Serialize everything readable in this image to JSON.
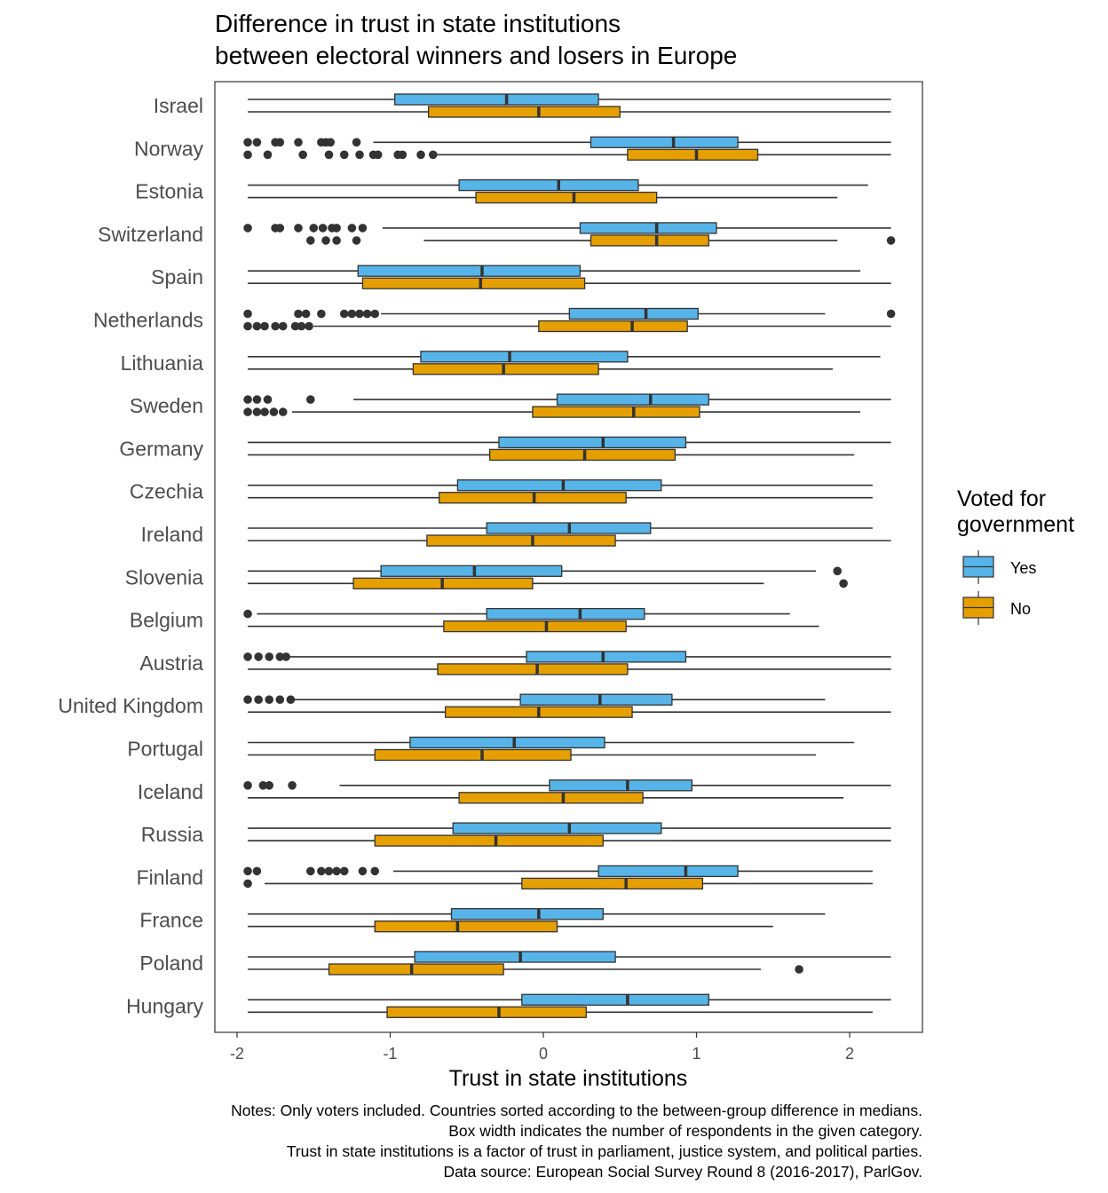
{
  "chart_data": {
    "type": "boxplot",
    "orientation": "horizontal",
    "title": "Difference in trust in state institutions",
    "subtitle": "between electoral winners and losers in Europe",
    "xlabel": "Trust in state institutions",
    "ylabel": "",
    "xlim": [
      -2.15,
      2.48
    ],
    "xticks": [
      -2,
      -1,
      0,
      1,
      2
    ],
    "xtick_labels": [
      "-2",
      "-1",
      "0",
      "1",
      "2"
    ],
    "grid": false,
    "legend": {
      "title_line1": "Voted for",
      "title_line2": "government",
      "placement": "right",
      "entries": [
        {
          "label": "Yes",
          "color": "#56B4E9"
        },
        {
          "label": "No",
          "color": "#E69F00"
        }
      ]
    },
    "colors": {
      "yes": "#56B4E9",
      "no": "#E69F00",
      "outline": "#333333",
      "text": "#4d4d4d"
    },
    "countries": [
      {
        "name": "Israel",
        "yes": {
          "wmin": -1.93,
          "q1": -0.97,
          "median": -0.24,
          "q3": 0.36,
          "wmax": 2.27,
          "outliers": []
        },
        "no": {
          "wmin": -1.93,
          "q1": -0.75,
          "median": -0.03,
          "q3": 0.5,
          "wmax": 2.27,
          "outliers": []
        }
      },
      {
        "name": "Norway",
        "yes": {
          "wmin": -1.11,
          "q1": 0.31,
          "median": 0.85,
          "q3": 1.27,
          "wmax": 2.27,
          "outliers": [
            -1.93,
            -1.87,
            -1.75,
            -1.72,
            -1.6,
            -1.45,
            -1.42,
            -1.39,
            -1.22
          ]
        },
        "no": {
          "wmin": -0.7,
          "q1": 0.55,
          "median": 1.0,
          "q3": 1.4,
          "wmax": 2.27,
          "outliers": [
            -1.93,
            -1.8,
            -1.57,
            -1.4,
            -1.3,
            -1.2,
            -1.11,
            -1.08,
            -0.95,
            -0.92,
            -0.8,
            -0.72
          ]
        }
      },
      {
        "name": "Estonia",
        "yes": {
          "wmin": -1.93,
          "q1": -0.55,
          "median": 0.1,
          "q3": 0.62,
          "wmax": 2.12,
          "outliers": []
        },
        "no": {
          "wmin": -1.93,
          "q1": -0.44,
          "median": 0.2,
          "q3": 0.74,
          "wmax": 1.92,
          "outliers": []
        }
      },
      {
        "name": "Switzerland",
        "yes": {
          "wmin": -1.05,
          "q1": 0.24,
          "median": 0.74,
          "q3": 1.13,
          "wmax": 2.27,
          "outliers": [
            -1.93,
            -1.75,
            -1.72,
            -1.6,
            -1.5,
            -1.44,
            -1.38,
            -1.35,
            -1.25,
            -1.18
          ]
        },
        "no": {
          "wmin": -0.78,
          "q1": 0.31,
          "median": 0.74,
          "q3": 1.08,
          "wmax": 1.92,
          "outliers": [
            -1.52,
            -1.42,
            -1.35,
            -1.22,
            2.27
          ]
        }
      },
      {
        "name": "Spain",
        "yes": {
          "wmin": -1.93,
          "q1": -1.21,
          "median": -0.4,
          "q3": 0.24,
          "wmax": 2.07,
          "outliers": []
        },
        "no": {
          "wmin": -1.93,
          "q1": -1.18,
          "median": -0.41,
          "q3": 0.27,
          "wmax": 2.27,
          "outliers": []
        }
      },
      {
        "name": "Netherlands",
        "yes": {
          "wmin": -1.06,
          "q1": 0.17,
          "median": 0.67,
          "q3": 1.01,
          "wmax": 1.84,
          "outliers": [
            -1.93,
            -1.6,
            -1.55,
            -1.45,
            -1.3,
            -1.25,
            -1.2,
            -1.15,
            -1.1,
            2.27
          ]
        },
        "no": {
          "wmin": -1.5,
          "q1": -0.03,
          "median": 0.58,
          "q3": 0.94,
          "wmax": 2.27,
          "outliers": [
            -1.93,
            -1.87,
            -1.82,
            -1.75,
            -1.7,
            -1.62,
            -1.58,
            -1.53
          ]
        }
      },
      {
        "name": "Lithuania",
        "yes": {
          "wmin": -1.93,
          "q1": -0.8,
          "median": -0.22,
          "q3": 0.55,
          "wmax": 2.2,
          "outliers": []
        },
        "no": {
          "wmin": -1.93,
          "q1": -0.85,
          "median": -0.26,
          "q3": 0.36,
          "wmax": 1.89,
          "outliers": []
        }
      },
      {
        "name": "Sweden",
        "yes": {
          "wmin": -1.24,
          "q1": 0.09,
          "median": 0.7,
          "q3": 1.08,
          "wmax": 2.27,
          "outliers": [
            -1.93,
            -1.87,
            -1.8,
            -1.52
          ]
        },
        "no": {
          "wmin": -1.64,
          "q1": -0.07,
          "median": 0.59,
          "q3": 1.02,
          "wmax": 2.07,
          "outliers": [
            -1.93,
            -1.87,
            -1.82,
            -1.76,
            -1.7
          ]
        }
      },
      {
        "name": "Germany",
        "yes": {
          "wmin": -1.93,
          "q1": -0.29,
          "median": 0.39,
          "q3": 0.93,
          "wmax": 2.27,
          "outliers": []
        },
        "no": {
          "wmin": -1.93,
          "q1": -0.35,
          "median": 0.27,
          "q3": 0.86,
          "wmax": 2.03,
          "outliers": []
        }
      },
      {
        "name": "Czechia",
        "yes": {
          "wmin": -1.93,
          "q1": -0.56,
          "median": 0.13,
          "q3": 0.77,
          "wmax": 2.15,
          "outliers": []
        },
        "no": {
          "wmin": -1.93,
          "q1": -0.68,
          "median": -0.06,
          "q3": 0.54,
          "wmax": 2.15,
          "outliers": []
        }
      },
      {
        "name": "Ireland",
        "yes": {
          "wmin": -1.93,
          "q1": -0.37,
          "median": 0.17,
          "q3": 0.7,
          "wmax": 2.15,
          "outliers": []
        },
        "no": {
          "wmin": -1.93,
          "q1": -0.76,
          "median": -0.07,
          "q3": 0.47,
          "wmax": 2.27,
          "outliers": []
        }
      },
      {
        "name": "Slovenia",
        "yes": {
          "wmin": -1.93,
          "q1": -1.06,
          "median": -0.45,
          "q3": 0.12,
          "wmax": 1.78,
          "outliers": [
            1.92
          ]
        },
        "no": {
          "wmin": -1.93,
          "q1": -1.24,
          "median": -0.66,
          "q3": -0.07,
          "wmax": 1.44,
          "outliers": [
            1.96
          ]
        }
      },
      {
        "name": "Belgium",
        "yes": {
          "wmin": -1.87,
          "q1": -0.37,
          "median": 0.24,
          "q3": 0.66,
          "wmax": 1.61,
          "outliers": [
            -1.93
          ]
        },
        "no": {
          "wmin": -1.93,
          "q1": -0.65,
          "median": 0.02,
          "q3": 0.54,
          "wmax": 1.8,
          "outliers": []
        }
      },
      {
        "name": "Austria",
        "yes": {
          "wmin": -1.66,
          "q1": -0.11,
          "median": 0.39,
          "q3": 0.93,
          "wmax": 2.27,
          "outliers": [
            -1.93,
            -1.86,
            -1.79,
            -1.72,
            -1.68
          ]
        },
        "no": {
          "wmin": -1.93,
          "q1": -0.69,
          "median": -0.04,
          "q3": 0.55,
          "wmax": 2.27,
          "outliers": []
        }
      },
      {
        "name": "United Kingdom",
        "yes": {
          "wmin": -1.64,
          "q1": -0.15,
          "median": 0.37,
          "q3": 0.84,
          "wmax": 1.84,
          "outliers": [
            -1.93,
            -1.86,
            -1.79,
            -1.72,
            -1.65
          ]
        },
        "no": {
          "wmin": -1.93,
          "q1": -0.64,
          "median": -0.03,
          "q3": 0.58,
          "wmax": 2.27,
          "outliers": []
        }
      },
      {
        "name": "Portugal",
        "yes": {
          "wmin": -1.93,
          "q1": -0.87,
          "median": -0.19,
          "q3": 0.4,
          "wmax": 2.03,
          "outliers": []
        },
        "no": {
          "wmin": -1.93,
          "q1": -1.1,
          "median": -0.4,
          "q3": 0.18,
          "wmax": 1.78,
          "outliers": []
        }
      },
      {
        "name": "Iceland",
        "yes": {
          "wmin": -1.33,
          "q1": 0.04,
          "median": 0.55,
          "q3": 0.97,
          "wmax": 2.27,
          "outliers": [
            -1.93,
            -1.83,
            -1.79,
            -1.64
          ]
        },
        "no": {
          "wmin": -1.93,
          "q1": -0.55,
          "median": 0.13,
          "q3": 0.65,
          "wmax": 1.96,
          "outliers": []
        }
      },
      {
        "name": "Russia",
        "yes": {
          "wmin": -1.93,
          "q1": -0.59,
          "median": 0.17,
          "q3": 0.77,
          "wmax": 2.27,
          "outliers": []
        },
        "no": {
          "wmin": -1.93,
          "q1": -1.1,
          "median": -0.31,
          "q3": 0.39,
          "wmax": 2.27,
          "outliers": []
        }
      },
      {
        "name": "Finland",
        "yes": {
          "wmin": -0.98,
          "q1": 0.36,
          "median": 0.93,
          "q3": 1.27,
          "wmax": 2.15,
          "outliers": [
            -1.93,
            -1.87,
            -1.52,
            -1.45,
            -1.4,
            -1.35,
            -1.3,
            -1.18,
            -1.1
          ]
        },
        "no": {
          "wmin": -1.82,
          "q1": -0.14,
          "median": 0.54,
          "q3": 1.04,
          "wmax": 2.15,
          "outliers": [
            -1.93
          ]
        }
      },
      {
        "name": "France",
        "yes": {
          "wmin": -1.93,
          "q1": -0.6,
          "median": -0.03,
          "q3": 0.39,
          "wmax": 1.84,
          "outliers": []
        },
        "no": {
          "wmin": -1.93,
          "q1": -1.1,
          "median": -0.56,
          "q3": 0.09,
          "wmax": 1.5,
          "outliers": []
        }
      },
      {
        "name": "Poland",
        "yes": {
          "wmin": -1.93,
          "q1": -0.84,
          "median": -0.15,
          "q3": 0.47,
          "wmax": 2.27,
          "outliers": []
        },
        "no": {
          "wmin": -1.93,
          "q1": -1.4,
          "median": -0.86,
          "q3": -0.26,
          "wmax": 1.42,
          "outliers": [
            1.67
          ]
        }
      },
      {
        "name": "Hungary",
        "yes": {
          "wmin": -1.93,
          "q1": -0.14,
          "median": 0.55,
          "q3": 1.08,
          "wmax": 2.27,
          "outliers": []
        },
        "no": {
          "wmin": -1.93,
          "q1": -1.02,
          "median": -0.29,
          "q3": 0.28,
          "wmax": 2.15,
          "outliers": []
        }
      }
    ]
  },
  "notes": [
    "Notes: Only voters included. Countries sorted according to the between-group difference in medians.",
    "Box width indicates the number of respondents in the given category.",
    "Trust in state institutions is a factor of trust in parliament, justice system, and political parties.",
    "Data source: European Social Survey Round 8 (2016-2017), ParlGov."
  ]
}
